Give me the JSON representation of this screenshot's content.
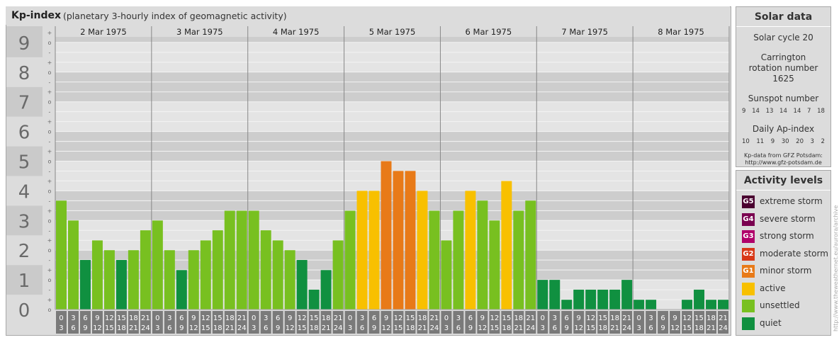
{
  "header": {
    "title": "Kp-index",
    "subtitle": "(planetary 3-hourly index of geomagnetic activity)"
  },
  "solar": {
    "title": "Solar data",
    "cycle": "Solar cycle 20",
    "carrington": "Carrington rotation number 1625",
    "sunspot_label": "Sunspot number",
    "sunspot_values": [
      "9",
      "14",
      "13",
      "14",
      "14",
      "7",
      "18"
    ],
    "ap_label": "Daily Ap-index",
    "ap_values": [
      "10",
      "11",
      "9",
      "30",
      "20",
      "3",
      "2"
    ],
    "credit_line1": "Kp-data from GFZ Potsdam:",
    "credit_line2": "http://www.gfz-potsdam.de"
  },
  "activity": {
    "title": "Activity levels",
    "levels": [
      {
        "code": "G5",
        "label": "extreme storm",
        "color": "#4a0030"
      },
      {
        "code": "G4",
        "label": "severe storm",
        "color": "#7a0050"
      },
      {
        "code": "G3",
        "label": "strong storm",
        "color": "#b0006a"
      },
      {
        "code": "G2",
        "label": "moderate storm",
        "color": "#d83818"
      },
      {
        "code": "G1",
        "label": "minor storm",
        "color": "#e87a18"
      },
      {
        "code": "",
        "label": "active",
        "color": "#f8c000"
      },
      {
        "code": "",
        "label": "unsettled",
        "color": "#78c020"
      },
      {
        "code": "",
        "label": "quiet",
        "color": "#109040"
      }
    ]
  },
  "watermark": "http://www.theweathernet.eu/aurora/archive",
  "chart_data": {
    "type": "bar",
    "days": [
      "2 Mar 1975",
      "3 Mar 1975",
      "4 Mar 1975",
      "5 Mar 1975",
      "6 Mar 1975",
      "7 Mar 1975",
      "8 Mar 1975"
    ],
    "interval_starts": [
      "0",
      "3",
      "6",
      "9",
      "12",
      "15",
      "18",
      "21"
    ],
    "interval_ends": [
      "3",
      "6",
      "9",
      "12",
      "15",
      "18",
      "21",
      "24"
    ],
    "y_ticks": [
      "0",
      "1",
      "2",
      "3",
      "4",
      "5",
      "6",
      "7",
      "8",
      "9"
    ],
    "sub_ticks": [
      "-",
      "o",
      "+"
    ],
    "ylim": [
      0,
      9.67
    ],
    "values": [
      [
        3.67,
        3.0,
        1.67,
        2.33,
        2.0,
        1.67,
        2.0,
        2.67
      ],
      [
        3.0,
        2.0,
        1.33,
        2.0,
        2.33,
        2.67,
        3.33,
        3.33
      ],
      [
        3.33,
        2.67,
        2.33,
        2.0,
        1.67,
        0.67,
        1.33,
        2.33
      ],
      [
        3.33,
        4.0,
        4.0,
        5.0,
        4.67,
        4.67,
        4.0,
        3.33
      ],
      [
        2.33,
        3.33,
        4.0,
        3.67,
        3.0,
        4.33,
        3.33,
        3.67
      ],
      [
        1.0,
        1.0,
        0.33,
        0.67,
        0.67,
        0.67,
        0.67,
        1.0
      ],
      [
        0.33,
        0.33,
        0.0,
        0.0,
        0.33,
        0.67,
        0.33,
        0.33
      ]
    ],
    "colors": {
      "quiet": "#109040",
      "unsettled": "#78c020",
      "active": "#f8c000",
      "g1": "#e87a18",
      "g2": "#d83818"
    }
  }
}
